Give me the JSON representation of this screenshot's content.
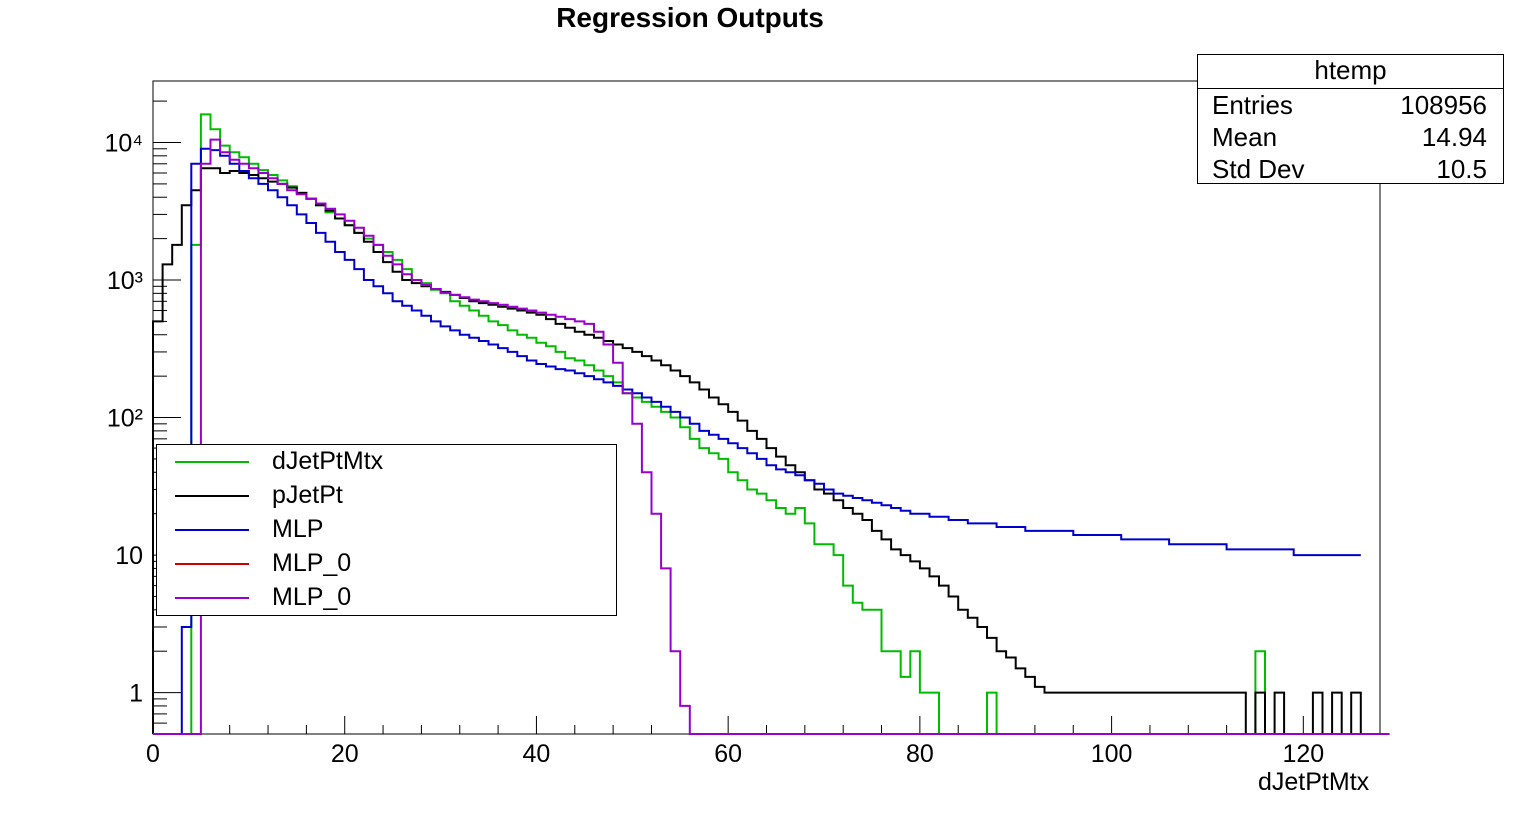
{
  "chart_data": {
    "type": "histogram",
    "title": "Regression Outputs",
    "xlabel": "dJetPtMtx",
    "ylabel": "",
    "xlim": [
      0,
      128
    ],
    "ylim": [
      0.5,
      28000
    ],
    "yscale": "log",
    "bin_width": 1,
    "x_ticks": [
      0,
      20,
      40,
      60,
      80,
      100,
      120
    ],
    "y_ticks": [
      1,
      10,
      100,
      1000,
      10000
    ],
    "y_tick_labels": [
      "1",
      "10",
      "10²",
      "10³",
      "10⁴"
    ],
    "legend_position": "middle-left",
    "series": [
      {
        "name": "dJetPtMtx",
        "color": "#00bb00",
        "values": [
          0,
          0,
          0,
          0,
          1800,
          16000,
          12500,
          9500,
          8500,
          7800,
          7000,
          6300,
          5800,
          5300,
          4800,
          4300,
          3900,
          3500,
          3100,
          2800,
          2500,
          2200,
          2000,
          1800,
          1600,
          1400,
          1200,
          1000,
          950,
          850,
          800,
          700,
          650,
          600,
          550,
          500,
          470,
          430,
          400,
          380,
          350,
          330,
          300,
          270,
          260,
          240,
          220,
          200,
          180,
          150,
          140,
          130,
          120,
          110,
          100,
          85,
          70,
          60,
          55,
          50,
          40,
          35,
          30,
          28,
          25,
          22,
          20,
          22,
          17,
          12,
          12,
          10,
          6,
          4.5,
          4,
          4,
          2,
          2,
          1.3,
          2,
          1,
          1,
          0,
          0,
          0,
          0,
          0,
          1,
          0,
          0,
          0,
          0,
          0,
          0,
          0,
          0,
          0,
          0,
          0,
          0,
          0,
          0,
          0,
          0,
          0,
          0,
          0,
          0,
          0,
          0,
          0,
          0,
          0,
          0,
          0,
          2,
          0,
          0,
          0,
          0,
          0,
          0,
          0,
          0,
          0,
          0
        ]
      },
      {
        "name": "pJetPt",
        "color": "#000000",
        "values": [
          500,
          1300,
          1800,
          3500,
          4500,
          6500,
          6500,
          6000,
          6200,
          6000,
          5800,
          5500,
          5200,
          5000,
          4700,
          4300,
          3900,
          3500,
          3200,
          2800,
          2500,
          2200,
          1900,
          1600,
          1350,
          1150,
          1000,
          950,
          900,
          860,
          820,
          780,
          740,
          700,
          680,
          660,
          640,
          620,
          600,
          580,
          560,
          520,
          480,
          450,
          420,
          400,
          380,
          360,
          340,
          320,
          300,
          280,
          260,
          240,
          220,
          200,
          180,
          160,
          140,
          125,
          110,
          95,
          80,
          70,
          60,
          52,
          45,
          40,
          35,
          30,
          28,
          25,
          22,
          20,
          18,
          15,
          13,
          11,
          10,
          9,
          8,
          7,
          6,
          5,
          4,
          3.5,
          3,
          2.5,
          2,
          1.8,
          1.5,
          1.3,
          1.1,
          1,
          1,
          1,
          1,
          1,
          1,
          1,
          1,
          1,
          1,
          1,
          1,
          1,
          1,
          1,
          1,
          1,
          1,
          1,
          1,
          1,
          0,
          1,
          0,
          1,
          0,
          0,
          0,
          1,
          0,
          1,
          0,
          1,
          0,
          0
        ]
      },
      {
        "name": "MLP",
        "color": "#0000cc",
        "values": [
          0,
          0,
          0,
          3,
          7000,
          9000,
          8800,
          8000,
          7000,
          6200,
          5500,
          5000,
          4500,
          4000,
          3500,
          3000,
          2600,
          2200,
          1900,
          1600,
          1400,
          1200,
          1000,
          900,
          800,
          700,
          650,
          600,
          550,
          500,
          460,
          430,
          400,
          380,
          360,
          340,
          320,
          300,
          280,
          260,
          245,
          235,
          225,
          220,
          210,
          200,
          190,
          180,
          170,
          160,
          150,
          140,
          130,
          120,
          110,
          100,
          90,
          80,
          75,
          70,
          65,
          60,
          55,
          50,
          45,
          42,
          40,
          38,
          35,
          33,
          30,
          28,
          27,
          26,
          25,
          24,
          23,
          22,
          21,
          20,
          20,
          19,
          19,
          18,
          18,
          17,
          17,
          17,
          16,
          16,
          16,
          15,
          15,
          15,
          15,
          15,
          14,
          14,
          14,
          14,
          14,
          13,
          13,
          13,
          13,
          13,
          12,
          12,
          12,
          12,
          12,
          12,
          11,
          11,
          11,
          11,
          11,
          11,
          11,
          10,
          10,
          10,
          10,
          10,
          10,
          10
        ]
      },
      {
        "name": "MLP_0",
        "color": "#cc0000",
        "values": []
      },
      {
        "name": "MLP_0",
        "color": "#9900cc",
        "values": [
          0,
          0,
          0,
          0,
          0,
          7000,
          10500,
          8500,
          7500,
          7000,
          6500,
          6000,
          5500,
          5000,
          4500,
          4200,
          3900,
          3600,
          3300,
          3000,
          2700,
          2400,
          2100,
          1800,
          1500,
          1300,
          1100,
          1000,
          920,
          860,
          810,
          780,
          750,
          720,
          700,
          680,
          660,
          640,
          620,
          600,
          580,
          560,
          540,
          520,
          500,
          480,
          420,
          340,
          250,
          150,
          90,
          40,
          20,
          8,
          2,
          0.8,
          0,
          0,
          0,
          0,
          0,
          0,
          0,
          0,
          0,
          0,
          0,
          0,
          0,
          0,
          0,
          0,
          0,
          0,
          0,
          0,
          0,
          0,
          0,
          0,
          0,
          0,
          0,
          0,
          0,
          0,
          0,
          0,
          0,
          0,
          0,
          0,
          0,
          0,
          0,
          0,
          0,
          0,
          0,
          0,
          0,
          0,
          0,
          0,
          0,
          0,
          0,
          0,
          0,
          0,
          0,
          0,
          0,
          0,
          0,
          0,
          0,
          0,
          0,
          0,
          0,
          0,
          0,
          0,
          0,
          0,
          0,
          0,
          0,
          0
        ]
      }
    ]
  },
  "stats": {
    "title": "htemp",
    "rows": [
      {
        "label": "Entries",
        "value": "108956"
      },
      {
        "label": "Mean",
        "value": "14.94"
      },
      {
        "label": "Std Dev",
        "value": "10.5"
      }
    ]
  }
}
